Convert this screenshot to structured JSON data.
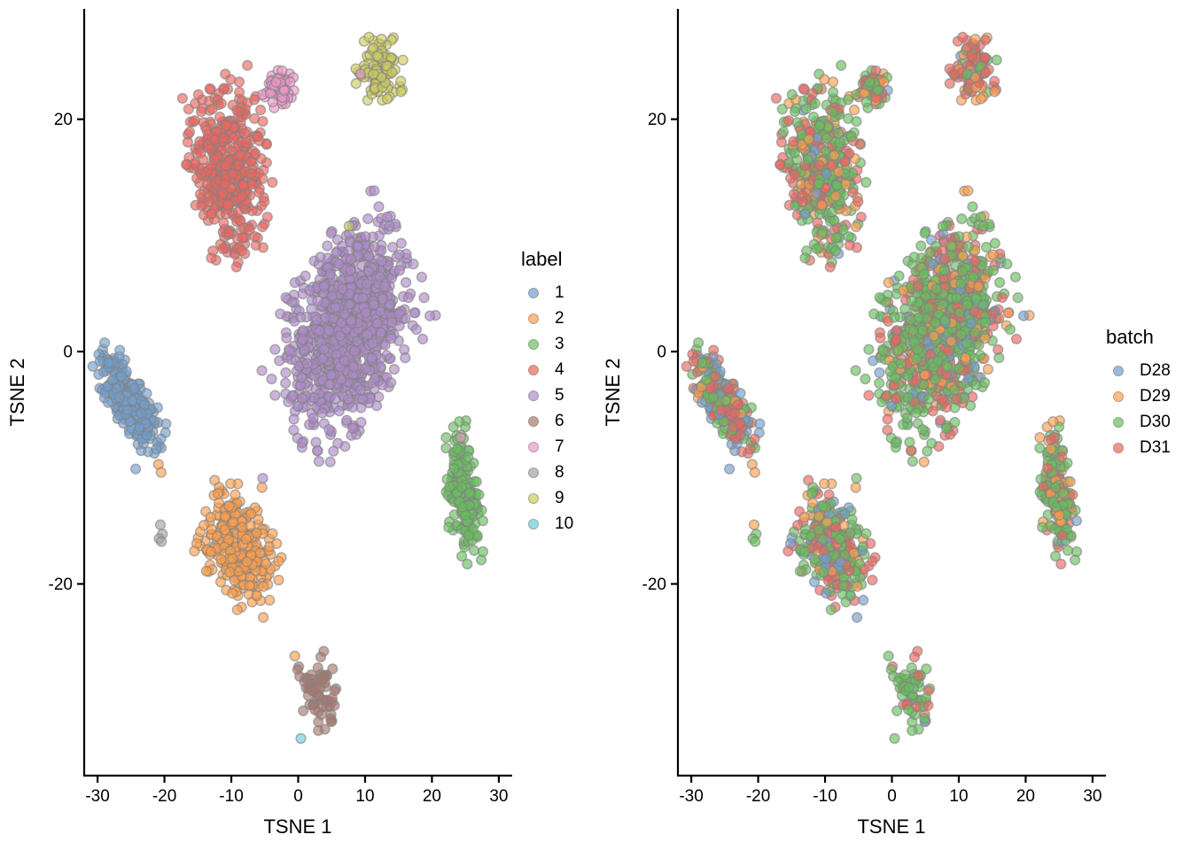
{
  "figure": {
    "background": "#FFFFFF"
  },
  "palette": {
    "label": {
      "1": "#729ECE",
      "2": "#FF9E4A",
      "3": "#67BF5C",
      "4": "#ED665D",
      "5": "#AD8BC9",
      "6": "#A8786E",
      "7": "#ED97CA",
      "8": "#A2A2A2",
      "9": "#CDCC5D",
      "10": "#6DCCDA"
    },
    "batch": {
      "D28": "#729ECE",
      "D29": "#FF9E4A",
      "D30": "#67BF5C",
      "D31": "#ED665D"
    },
    "point_stroke": "#828282",
    "axis_color": "#000000"
  },
  "chart_data": {
    "type": "scatter",
    "panels": [
      {
        "name": "tsne-by-label",
        "xlabel": "TSNE 1",
        "ylabel": "TSNE 2",
        "xlim": [
          -32,
          32
        ],
        "ylim": [
          -36.5,
          29.5
        ],
        "x_ticks": [
          -30,
          -20,
          -10,
          0,
          10,
          20,
          30
        ],
        "y_ticks": [
          -20,
          0,
          20
        ],
        "grid": false,
        "color_by": "label",
        "legend": {
          "title": "label",
          "position": "right",
          "entries": [
            {
              "label": "1",
              "color": "#729ECE"
            },
            {
              "label": "2",
              "color": "#FF9E4A"
            },
            {
              "label": "3",
              "color": "#67BF5C"
            },
            {
              "label": "4",
              "color": "#ED665D"
            },
            {
              "label": "5",
              "color": "#AD8BC9"
            },
            {
              "label": "6",
              "color": "#A8786E"
            },
            {
              "label": "7",
              "color": "#ED97CA"
            },
            {
              "label": "8",
              "color": "#A2A2A2"
            },
            {
              "label": "9",
              "color": "#CDCC5D"
            },
            {
              "label": "10",
              "color": "#6DCCDA"
            }
          ]
        }
      },
      {
        "name": "tsne-by-batch",
        "xlabel": "TSNE 1",
        "ylabel": "TSNE 2",
        "xlim": [
          -32,
          32
        ],
        "ylim": [
          -36.5,
          29.5
        ],
        "x_ticks": [
          -30,
          -20,
          -10,
          0,
          10,
          20,
          30
        ],
        "y_ticks": [
          -20,
          0,
          20
        ],
        "grid": false,
        "color_by": "batch",
        "legend": {
          "title": "batch",
          "position": "right",
          "entries": [
            {
              "label": "D28",
              "color": "#729ECE"
            },
            {
              "label": "D29",
              "color": "#FF9E4A"
            },
            {
              "label": "D30",
              "color": "#67BF5C"
            },
            {
              "label": "D31",
              "color": "#ED665D"
            }
          ]
        }
      }
    ],
    "clusters": [
      {
        "label": "1",
        "n": 270,
        "center": [
          -25.2,
          -4.2
        ],
        "sd": [
          2.9,
          1.05
        ],
        "angle": -40,
        "batch_mix": {
          "D28": 0.22,
          "D29": 0.05,
          "D30": 0.38,
          "D31": 0.35
        }
      },
      {
        "label": "2",
        "n": 270,
        "center": [
          -8.8,
          -17.0
        ],
        "sd": [
          2.9,
          2.1
        ],
        "angle": -30,
        "batch_mix": {
          "D28": 0.13,
          "D29": 0.12,
          "D30": 0.45,
          "D31": 0.3
        }
      },
      {
        "label": "3",
        "n": 170,
        "center": [
          24.6,
          -12.2
        ],
        "sd": [
          2.7,
          1.2
        ],
        "angle": -80,
        "batch_mix": {
          "D28": 0.04,
          "D29": 0.22,
          "D30": 0.58,
          "D31": 0.16
        }
      },
      {
        "label": "4",
        "n": 430,
        "center": [
          -10.5,
          15.6
        ],
        "sd": [
          3.7,
          2.7
        ],
        "angle": -75,
        "batch_mix": {
          "D28": 0.04,
          "D29": 0.16,
          "D30": 0.5,
          "D31": 0.3
        }
      },
      {
        "label": "5",
        "n": 950,
        "center": [
          7.2,
          1.7
        ],
        "sd": [
          5.2,
          3.6
        ],
        "angle": 40,
        "batch_mix": {
          "D28": 0.06,
          "D29": 0.12,
          "D30": 0.56,
          "D31": 0.26
        }
      },
      {
        "label": "6",
        "n": 65,
        "center": [
          3.1,
          -29.4
        ],
        "sd": [
          1.8,
          1.4
        ],
        "angle": -60,
        "batch_mix": {
          "D28": 0.02,
          "D29": 0.05,
          "D30": 0.7,
          "D31": 0.23
        }
      },
      {
        "label": "7",
        "n": 55,
        "center": [
          -2.9,
          22.9
        ],
        "sd": [
          1.2,
          0.85
        ],
        "angle": 20,
        "batch_mix": {
          "D28": 0.04,
          "D29": 0.18,
          "D30": 0.43,
          "D31": 0.35
        }
      },
      {
        "label": "9",
        "n": 95,
        "center": [
          12.3,
          24.4
        ],
        "sd": [
          1.7,
          1.4
        ],
        "angle": 0,
        "batch_mix": {
          "D28": 0.04,
          "D29": 0.28,
          "D30": 0.22,
          "D31": 0.46
        }
      }
    ],
    "extra_points": [
      {
        "x": -24.3,
        "y": -10.1,
        "label": "1",
        "batch": "D28"
      },
      {
        "x": -20.9,
        "y": -9.7,
        "label": "2",
        "batch": "D29"
      },
      {
        "x": -20.5,
        "y": -10.4,
        "label": "2",
        "batch": "D29"
      },
      {
        "x": -5.4,
        "y": -11.7,
        "label": "2",
        "batch": "D29"
      },
      {
        "x": -5.3,
        "y": -10.9,
        "label": "5",
        "batch": "D30"
      },
      {
        "x": -0.5,
        "y": -26.2,
        "label": "2",
        "batch": "D30"
      },
      {
        "x": 7.6,
        "y": 10.8,
        "label": "9",
        "batch": "D30"
      },
      {
        "x": 9.3,
        "y": 23.9,
        "label": "7",
        "batch": "D31"
      },
      {
        "x": 24.3,
        "y": -7.4,
        "label": "7",
        "batch": "D31"
      },
      {
        "x": -20.6,
        "y": -14.9,
        "label": "8",
        "batch": "D29"
      },
      {
        "x": -20.3,
        "y": -15.7,
        "label": "8",
        "batch": "D30"
      },
      {
        "x": -20.8,
        "y": -16.1,
        "label": "8",
        "batch": "D30"
      },
      {
        "x": -20.45,
        "y": -16.35,
        "label": "8",
        "batch": "D30"
      },
      {
        "x": 0.4,
        "y": -33.3,
        "label": "10",
        "batch": "D30"
      }
    ]
  }
}
